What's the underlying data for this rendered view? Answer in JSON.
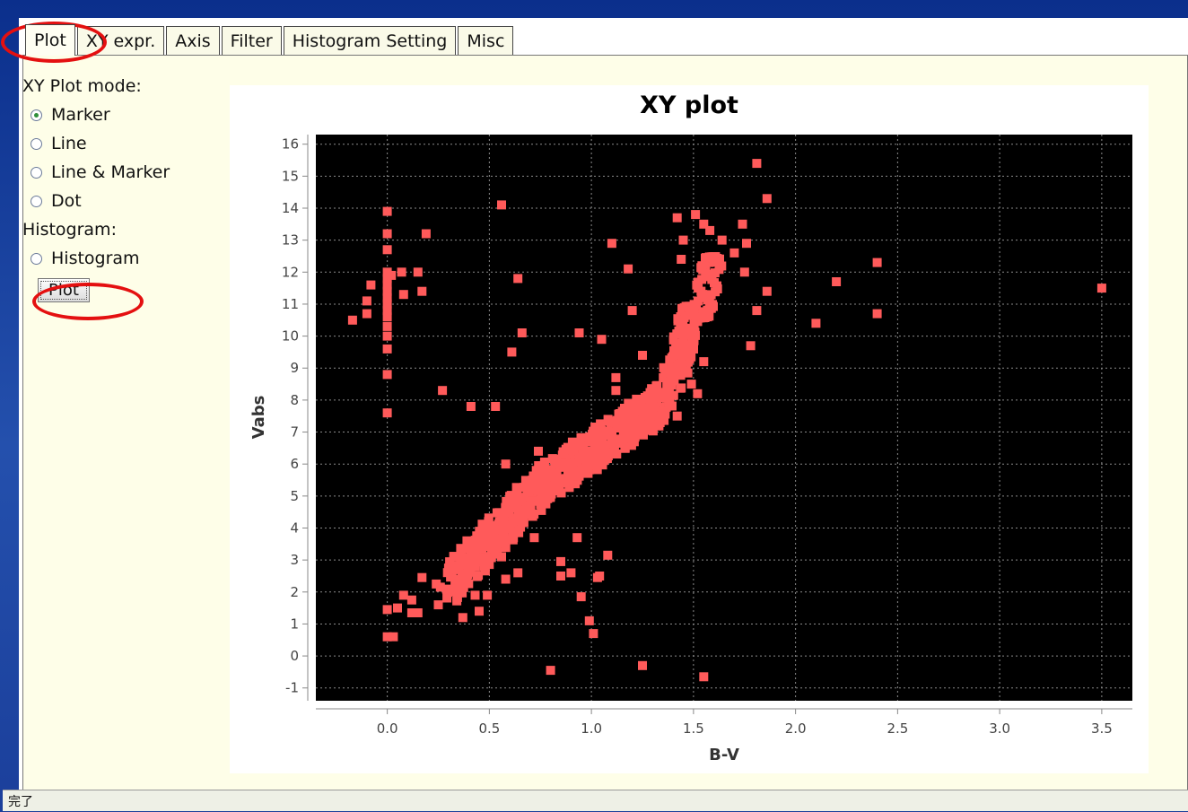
{
  "tabs": [
    {
      "label": "Plot",
      "active": true
    },
    {
      "label": "XY expr.",
      "active": false
    },
    {
      "label": "Axis",
      "active": false
    },
    {
      "label": "Filter",
      "active": false
    },
    {
      "label": "Histogram Setting",
      "active": false
    },
    {
      "label": "Misc",
      "active": false
    }
  ],
  "controls": {
    "xy_mode_label": "XY Plot mode:",
    "modes": [
      {
        "label": "Marker",
        "checked": true
      },
      {
        "label": "Line",
        "checked": false
      },
      {
        "label": "Line & Marker",
        "checked": false
      },
      {
        "label": "Dot",
        "checked": false
      }
    ],
    "histogram_label": "Histogram:",
    "histogram_option": {
      "label": "Histogram",
      "checked": false
    },
    "plot_button": "Plot"
  },
  "status": {
    "text": "完了"
  },
  "colors": {
    "marker": "#ff5a5a",
    "plot_bg": "#000000",
    "highlight": "#e41010",
    "panel_bg": "#fefee8"
  },
  "chart_data": {
    "type": "scatter",
    "title": "XY plot",
    "xlabel": "B-V",
    "ylabel": "Vabs",
    "xlim": [
      -0.35,
      3.65
    ],
    "ylim": [
      -1.4,
      16.3
    ],
    "xticks": [
      "0.0",
      "0.5",
      "1.0",
      "1.5",
      "2.0",
      "2.5",
      "3.0",
      "3.5"
    ],
    "yticks": [
      "-1",
      "0",
      "1",
      "2",
      "3",
      "4",
      "5",
      "6",
      "7",
      "8",
      "9",
      "10",
      "11",
      "12",
      "13",
      "14",
      "15",
      "16"
    ],
    "grid": true,
    "marker": "square",
    "points": [
      [
        0.0,
        13.9
      ],
      [
        0.0,
        13.2
      ],
      [
        0.0,
        12.7
      ],
      [
        0.0,
        12.0
      ],
      [
        0.0,
        11.8
      ],
      [
        0.0,
        11.6
      ],
      [
        0.0,
        11.4
      ],
      [
        0.0,
        11.2
      ],
      [
        0.0,
        11.0
      ],
      [
        0.0,
        10.8
      ],
      [
        0.0,
        10.6
      ],
      [
        0.0,
        10.3
      ],
      [
        0.0,
        10.0
      ],
      [
        0.0,
        9.6
      ],
      [
        0.0,
        8.8
      ],
      [
        0.0,
        7.6
      ],
      [
        -0.17,
        10.5
      ],
      [
        -0.1,
        11.1
      ],
      [
        -0.1,
        10.7
      ],
      [
        -0.08,
        11.6
      ],
      [
        0.02,
        11.9
      ],
      [
        0.07,
        12.0
      ],
      [
        0.15,
        12.0
      ],
      [
        0.17,
        11.4
      ],
      [
        0.19,
        13.2
      ],
      [
        0.08,
        11.3
      ],
      [
        0.27,
        8.3
      ],
      [
        0.41,
        7.8
      ],
      [
        0.53,
        7.8
      ],
      [
        0.56,
        14.1
      ],
      [
        0.61,
        9.5
      ],
      [
        0.64,
        11.8
      ],
      [
        0.66,
        10.1
      ],
      [
        0.94,
        10.1
      ],
      [
        1.05,
        9.9
      ],
      [
        1.1,
        12.9
      ],
      [
        1.18,
        12.1
      ],
      [
        1.2,
        10.8
      ],
      [
        1.25,
        9.4
      ],
      [
        1.12,
        8.7
      ],
      [
        1.12,
        8.3
      ],
      [
        0.58,
        6.0
      ],
      [
        0.74,
        6.4
      ],
      [
        0.0,
        1.45
      ],
      [
        0.05,
        1.5
      ],
      [
        0.08,
        1.9
      ],
      [
        0.12,
        1.75
      ],
      [
        0.12,
        1.35
      ],
      [
        0.15,
        1.35
      ],
      [
        0.17,
        2.45
      ],
      [
        0.24,
        2.25
      ],
      [
        0.25,
        1.6
      ],
      [
        0.26,
        2.15
      ],
      [
        0.37,
        1.2
      ],
      [
        0.45,
        1.4
      ],
      [
        0.49,
        1.9
      ],
      [
        0.0,
        0.6
      ],
      [
        0.03,
        0.6
      ],
      [
        0.58,
        2.4
      ],
      [
        0.64,
        2.6
      ],
      [
        0.85,
        2.95
      ],
      [
        0.85,
        2.5
      ],
      [
        0.9,
        2.6
      ],
      [
        0.93,
        3.7
      ],
      [
        0.95,
        1.85
      ],
      [
        0.99,
        1.1
      ],
      [
        1.01,
        0.7
      ],
      [
        1.03,
        2.45
      ],
      [
        1.04,
        2.5
      ],
      [
        1.08,
        3.15
      ],
      [
        0.8,
        -0.45
      ],
      [
        1.25,
        -0.3
      ],
      [
        1.55,
        -0.65
      ],
      [
        0.72,
        3.7
      ],
      [
        0.56,
        3.1
      ],
      [
        0.39,
        3.6
      ],
      [
        0.36,
        2.4
      ],
      [
        0.43,
        1.9
      ],
      [
        1.42,
        13.7
      ],
      [
        1.45,
        13.0
      ],
      [
        1.51,
        13.8
      ],
      [
        1.44,
        12.4
      ],
      [
        1.55,
        13.5
      ],
      [
        1.58,
        13.3
      ],
      [
        1.64,
        13.0
      ],
      [
        1.74,
        13.5
      ],
      [
        1.76,
        12.9
      ],
      [
        1.81,
        15.4
      ],
      [
        1.86,
        14.3
      ],
      [
        1.86,
        11.4
      ],
      [
        1.81,
        10.8
      ],
      [
        1.78,
        9.7
      ],
      [
        1.75,
        12.0
      ],
      [
        1.7,
        12.6
      ],
      [
        1.52,
        8.2
      ],
      [
        1.4,
        8.6
      ],
      [
        1.38,
        7.9
      ],
      [
        1.3,
        8.0
      ],
      [
        1.33,
        7.5
      ],
      [
        1.42,
        7.5
      ],
      [
        1.49,
        8.5
      ],
      [
        1.55,
        9.2
      ],
      [
        2.1,
        10.4
      ],
      [
        2.2,
        11.7
      ],
      [
        2.4,
        12.3
      ],
      [
        2.4,
        10.7
      ],
      [
        3.5,
        11.5
      ]
    ]
  }
}
